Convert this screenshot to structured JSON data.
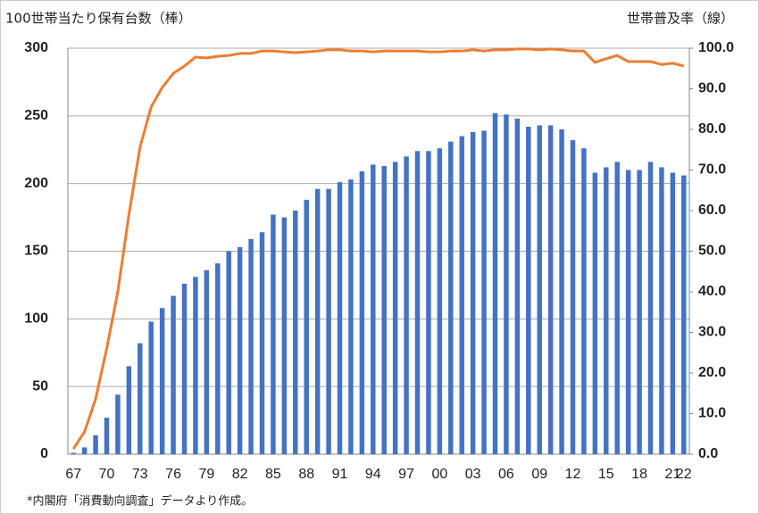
{
  "chart_data": {
    "type": "bar",
    "ylabel": "100世帯当たり保有台数（棒）",
    "y2label": "世帯普及率（線）",
    "note": "*内閣府「消費動向調査」データより作成。",
    "categories": [
      "67",
      null,
      null,
      "70",
      null,
      null,
      "73",
      null,
      null,
      "76",
      null,
      null,
      "79",
      null,
      null,
      "82",
      null,
      null,
      "85",
      null,
      null,
      "88",
      null,
      null,
      "91",
      null,
      null,
      "94",
      null,
      null,
      "97",
      null,
      null,
      "00",
      null,
      null,
      "03",
      null,
      null,
      "06",
      null,
      null,
      "09",
      null,
      null,
      "12",
      null,
      null,
      "15",
      null,
      null,
      "18",
      null,
      null,
      "21",
      "22"
    ],
    "series": [
      {
        "type": "bar",
        "color": "#4472c4",
        "values": [
          1,
          5,
          14,
          27,
          44,
          65,
          82,
          98,
          108,
          117,
          126,
          131,
          136,
          141,
          150,
          153,
          159,
          164,
          177,
          175,
          180,
          188,
          196,
          196,
          201,
          203,
          209,
          214,
          213,
          216,
          220,
          224,
          224,
          226,
          231,
          235,
          238,
          239,
          252,
          251,
          248,
          242,
          243,
          243,
          240,
          232,
          226,
          208,
          212,
          216,
          210,
          210,
          216,
          212,
          208,
          206
        ]
      },
      {
        "type": "line",
        "axis": "y2",
        "color": "#ed7d31",
        "values": [
          1.3,
          5.5,
          13.6,
          26,
          40,
          59,
          75.6,
          85.5,
          90.3,
          93.8,
          95.6,
          97.8,
          97.6,
          98,
          98.2,
          98.7,
          98.7,
          99.3,
          99.3,
          99.1,
          98.9,
          99.1,
          99.3,
          99.6,
          99.6,
          99.3,
          99.3,
          99.1,
          99.3,
          99.3,
          99.3,
          99.3,
          99.1,
          99.1,
          99.3,
          99.3,
          99.6,
          99.3,
          99.6,
          99.6,
          99.8,
          99.8,
          99.6,
          99.8,
          99.6,
          99.3,
          99.3,
          96.5,
          97.4,
          98.2,
          96.7,
          96.7,
          96.7,
          96,
          96.3,
          95.6
        ]
      }
    ],
    "ylim": [
      0,
      300
    ],
    "yticks": [
      0,
      50,
      100,
      150,
      200,
      250,
      300
    ],
    "y2lim": [
      0,
      100
    ],
    "y2ticks": [
      {
        "value": 0,
        "label": "0.0"
      },
      {
        "value": 10,
        "label": "10.0"
      },
      {
        "value": 20,
        "label": "20.0"
      },
      {
        "value": 30,
        "label": "30.0"
      },
      {
        "value": 40,
        "label": "40.0"
      },
      {
        "value": 50,
        "label": "50.0"
      },
      {
        "value": 60,
        "label": "60.0"
      },
      {
        "value": 70,
        "label": "70.0"
      },
      {
        "value": 80,
        "label": "80.0"
      },
      {
        "value": 90,
        "label": "90.0"
      },
      {
        "value": 100,
        "label": "100.0"
      }
    ],
    "grid": true
  }
}
